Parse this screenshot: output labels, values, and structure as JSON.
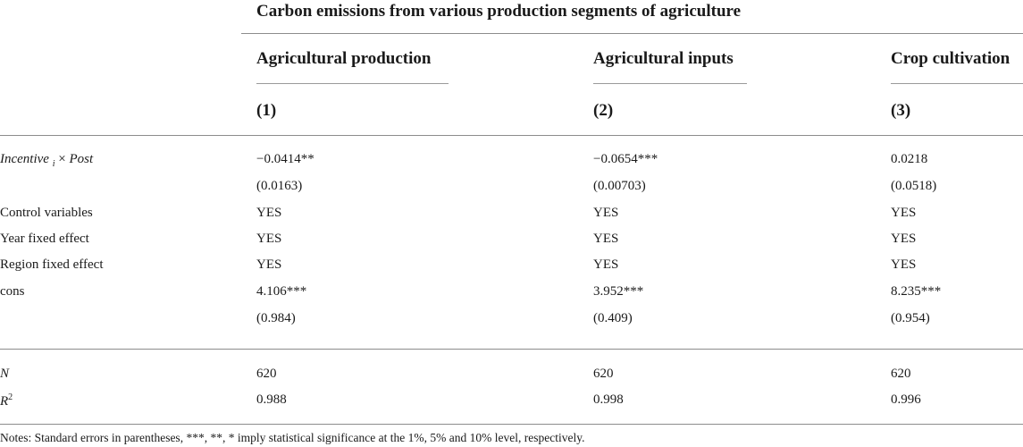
{
  "table": {
    "super_header": "Carbon emissions from various production segments of agriculture",
    "columns": [
      {
        "name": "Agricultural production",
        "number": "(1)"
      },
      {
        "name": "Agricultural inputs",
        "number": "(2)"
      },
      {
        "name": "Crop cultivation",
        "number": "(3)"
      }
    ],
    "rows": [
      {
        "label": "",
        "values": [
          "−0.0414**",
          "−0.0654***",
          "0.0218"
        ]
      },
      {
        "label": "",
        "values": [
          "(0.0163)",
          "(0.00703)",
          "(0.0518)"
        ]
      },
      {
        "label": "Control variables",
        "values": [
          "YES",
          "YES",
          "YES"
        ]
      },
      {
        "label": "Year fixed effect",
        "values": [
          "YES",
          "YES",
          "YES"
        ]
      },
      {
        "label": "Region fixed effect",
        "values": [
          "YES",
          "YES",
          "YES"
        ]
      },
      {
        "label": "cons",
        "values": [
          "4.106***",
          "3.952***",
          "8.235***"
        ]
      },
      {
        "label": "",
        "values": [
          "(0.984)",
          "(0.409)",
          "(0.954)"
        ]
      }
    ],
    "interaction_label": {
      "var": "Incentive",
      "sub": "i",
      "times": " × ",
      "post": "Post"
    },
    "stats_rows": [
      {
        "label": "N",
        "values": [
          "620",
          "620",
          "620"
        ]
      },
      {
        "label_main": "R",
        "label_sup": "2",
        "values": [
          "0.988",
          "0.998",
          "0.996"
        ]
      }
    ],
    "notes": "Notes: Standard errors in parentheses, ***, **, * imply statistical significance at the 1%, 5% and 10% level, respectively."
  }
}
